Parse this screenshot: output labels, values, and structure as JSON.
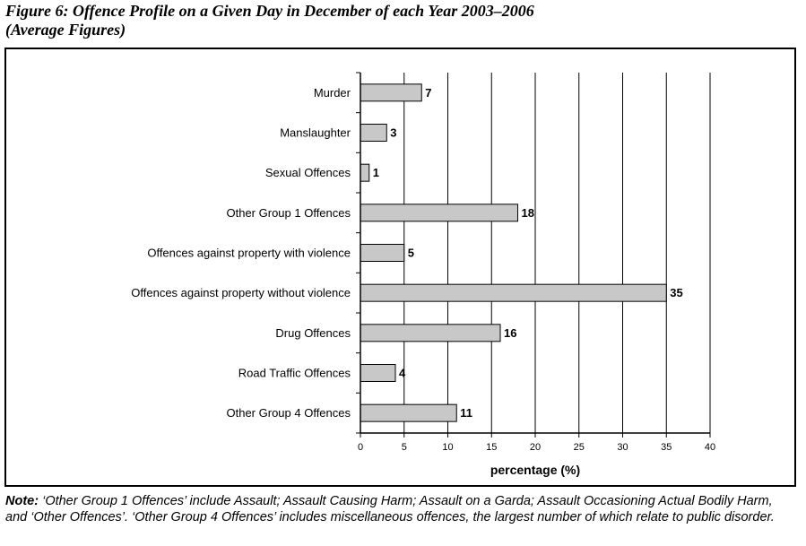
{
  "figure": {
    "title_line1": "Figure 6: Offence Profile on a Given Day in December of each Year 2003–2006",
    "title_line2": "(Average Figures)"
  },
  "note": {
    "label": "Note:",
    "text": " ‘Other Group 1 Offences’ include Assault; Assault Causing Harm; Assault on a Garda; Assault Occasioning Actual Bodily Harm, and ‘Other Offences’. ‘Other Group 4 Offences’ includes miscellaneous offences, the largest number of which relate to public disorder."
  },
  "chart_data": {
    "type": "bar",
    "orientation": "horizontal",
    "title": "Figure 6: Offence Profile on a Given Day in December of each Year 2003–2006 (Average Figures)",
    "categories": [
      "Murder",
      "Manslaughter",
      "Sexual Offences",
      "Other Group 1 Offences",
      "Offences against property with violence",
      "Offences against property without violence",
      "Drug Offences",
      "Road Traffic Offences",
      "Other Group 4 Offences"
    ],
    "values": [
      7,
      3,
      1,
      18,
      5,
      35,
      16,
      4,
      11
    ],
    "data_labels": [
      "7",
      "3",
      "1",
      "18",
      "5",
      "35",
      "16",
      "4",
      "11"
    ],
    "xlabel": "percentage (%)",
    "ylabel": "",
    "xlim": [
      0,
      40
    ],
    "xticks": [
      0,
      5,
      10,
      15,
      20,
      25,
      30,
      35,
      40
    ],
    "xtick_labels": [
      "0",
      "5",
      "10",
      "15",
      "20",
      "25",
      "30",
      "35",
      "40"
    ],
    "grid": "vertical",
    "legend": "none",
    "colors": {
      "bar_fill": "#c8c8c8",
      "bar_stroke": "#000000",
      "grid": "#000000"
    }
  }
}
